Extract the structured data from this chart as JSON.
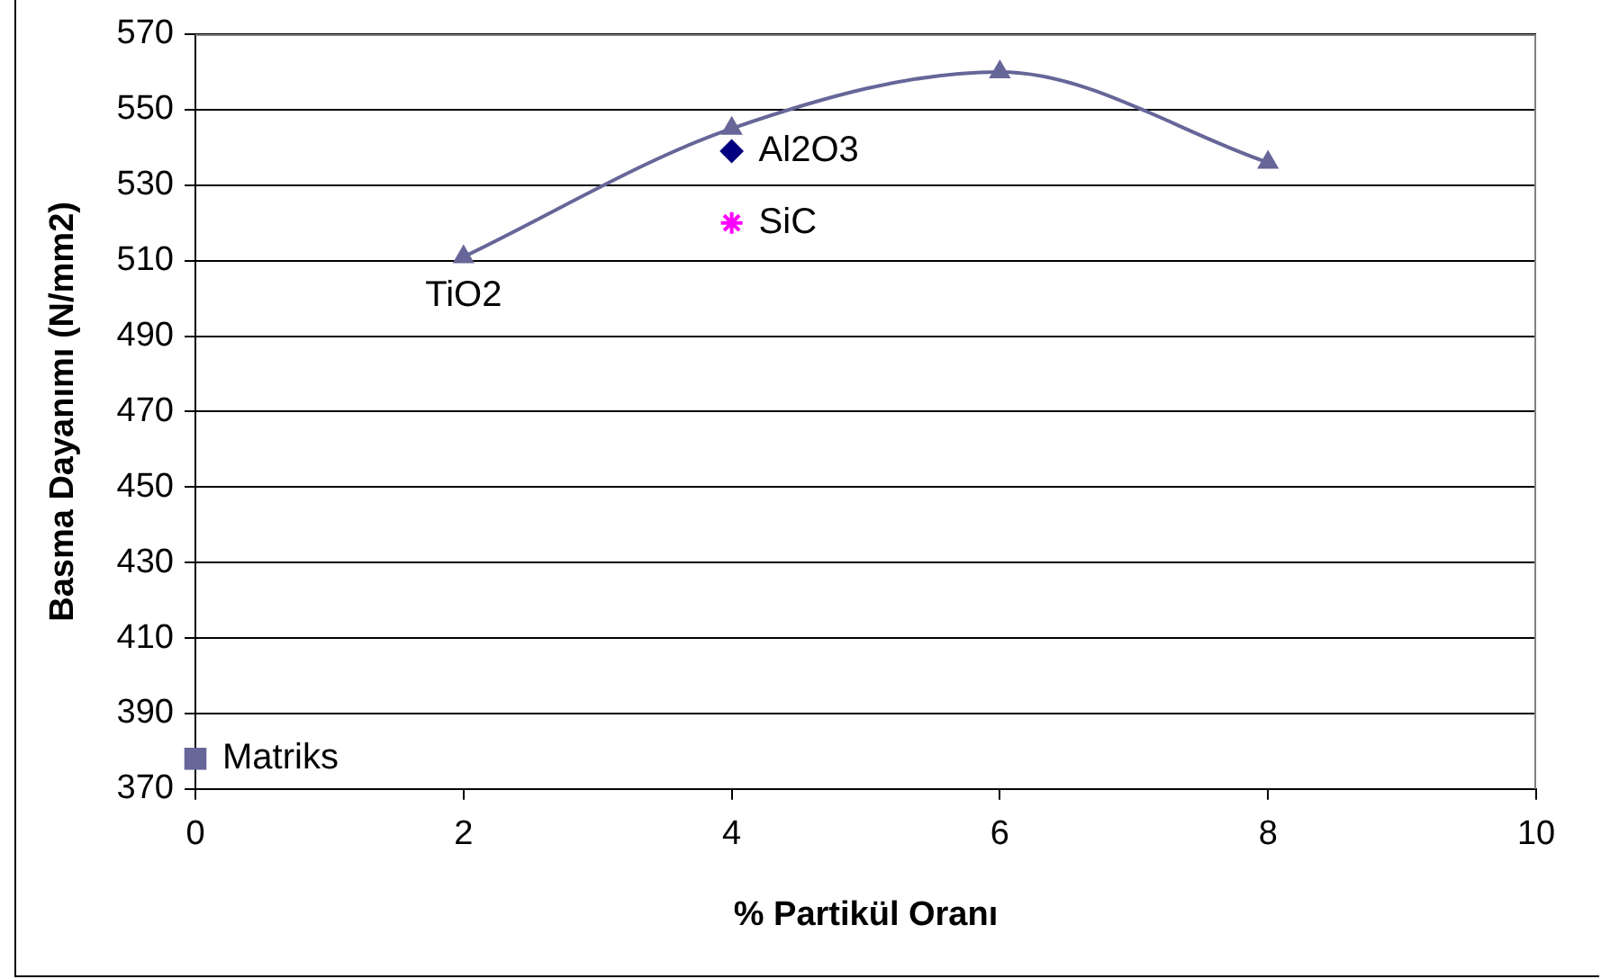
{
  "chart_data": {
    "type": "scatter",
    "xlabel": "% Partikül Oranı",
    "ylabel": "Basma Dayanımı (N/mm2)",
    "xlim": [
      0,
      10
    ],
    "xticks": [
      0,
      2,
      4,
      6,
      8,
      10
    ],
    "ylim": [
      370,
      570
    ],
    "yticks": [
      370,
      390,
      410,
      430,
      450,
      470,
      490,
      510,
      530,
      550,
      570
    ],
    "grid": "y",
    "legend": false,
    "series": [
      {
        "name": "TiO2",
        "type": "line",
        "color": "#666699",
        "marker": "triangle",
        "x": [
          2,
          4,
          6,
          8
        ],
        "values": [
          511,
          545,
          560,
          536
        ]
      },
      {
        "name": "Al2O3",
        "type": "scatter",
        "color": "#000080",
        "marker": "diamond",
        "x": [
          4
        ],
        "values": [
          539
        ]
      },
      {
        "name": "SiC",
        "type": "scatter",
        "color": "#ff00ff",
        "marker": "cross",
        "x": [
          4
        ],
        "values": [
          520
        ]
      },
      {
        "name": "Matriks",
        "type": "scatter",
        "color": "#666699",
        "marker": "square",
        "x": [
          0
        ],
        "values": [
          378
        ]
      }
    ]
  }
}
